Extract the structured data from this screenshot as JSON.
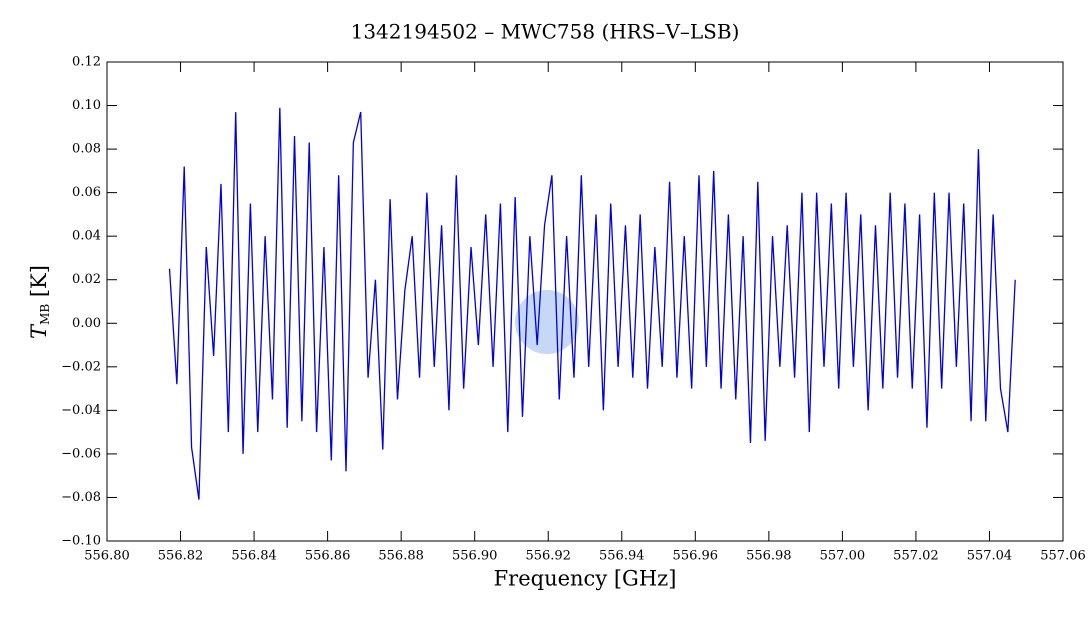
{
  "chart_data": {
    "type": "line",
    "title": "1342194502 – MWC758 (HRS–V–LSB)",
    "x_label": "Frequency [GHz]",
    "y_label": [
      "T",
      "MB",
      " [K]"
    ],
    "x": [
      556.817,
      556.819,
      556.821,
      556.823,
      556.825,
      556.827,
      556.829,
      556.831,
      556.833,
      556.835,
      556.837,
      556.839,
      556.841,
      556.843,
      556.845,
      556.847,
      556.849,
      556.851,
      556.853,
      556.855,
      556.857,
      556.859,
      556.861,
      556.863,
      556.865,
      556.867,
      556.869,
      556.871,
      556.873,
      556.875,
      556.877,
      556.879,
      556.881,
      556.883,
      556.885,
      556.887,
      556.889,
      556.891,
      556.893,
      556.895,
      556.897,
      556.899,
      556.901,
      556.903,
      556.905,
      556.907,
      556.909,
      556.911,
      556.913,
      556.915,
      556.917,
      556.919,
      556.921,
      556.923,
      556.925,
      556.927,
      556.929,
      556.931,
      556.933,
      556.935,
      556.937,
      556.939,
      556.941,
      556.943,
      556.945,
      556.947,
      556.949,
      556.951,
      556.953,
      556.955,
      556.957,
      556.959,
      556.961,
      556.963,
      556.965,
      556.967,
      556.969,
      556.971,
      556.973,
      556.975,
      556.977,
      556.979,
      556.981,
      556.983,
      556.985,
      556.987,
      556.989,
      556.991,
      556.993,
      556.995,
      556.997,
      556.999,
      557.001,
      557.003,
      557.005,
      557.007,
      557.009,
      557.011,
      557.013,
      557.015,
      557.017,
      557.019,
      557.021,
      557.023,
      557.025,
      557.027,
      557.029,
      557.031,
      557.033,
      557.035,
      557.037,
      557.039,
      557.041,
      557.043,
      557.045,
      557.047
    ],
    "series": [
      {
        "color": "#0000e0",
        "values": [
          0.025,
          -0.028,
          0.072,
          -0.057,
          -0.081,
          0.035,
          -0.015,
          0.064,
          -0.05,
          0.097,
          -0.06,
          0.055,
          -0.05,
          0.04,
          -0.035,
          0.099,
          -0.048,
          0.086,
          -0.045,
          0.083,
          -0.05,
          0.035,
          -0.063,
          0.068,
          -0.068,
          0.083,
          0.097,
          -0.025,
          0.02,
          -0.058,
          0.057,
          -0.035,
          0.015,
          0.04,
          -0.025,
          0.06,
          -0.02,
          0.045,
          -0.04,
          0.068,
          -0.03,
          0.035,
          -0.01,
          0.05,
          -0.02,
          0.055,
          -0.05,
          0.058,
          -0.043,
          0.04,
          -0.01,
          0.045,
          0.068,
          -0.035,
          0.04,
          -0.025,
          0.068,
          -0.02,
          0.05,
          -0.04,
          0.055,
          -0.02,
          0.045,
          -0.025,
          0.05,
          -0.03,
          0.035,
          -0.02,
          0.065,
          -0.025,
          0.04,
          -0.03,
          0.068,
          -0.02,
          0.07,
          -0.03,
          0.05,
          -0.035,
          0.04,
          -0.055,
          0.065,
          -0.054,
          0.04,
          -0.02,
          0.045,
          -0.025,
          0.06,
          -0.05,
          0.06,
          -0.02,
          0.055,
          -0.03,
          0.06,
          -0.02,
          0.05,
          -0.04,
          0.045,
          -0.03,
          0.06,
          -0.025,
          0.055,
          -0.03,
          0.05,
          -0.048,
          0.06,
          -0.03,
          0.06,
          -0.02,
          0.055,
          -0.045,
          0.08,
          -0.045,
          0.05,
          -0.03,
          -0.05,
          0.02
        ]
      }
    ],
    "xlim": [
      556.8,
      557.06
    ],
    "xticks": [
      {
        "value": 556.8,
        "label": "556.80"
      },
      556.82,
      556.84,
      556.86,
      556.88,
      {
        "value": 556.9,
        "label": "556.90"
      },
      556.92,
      556.94,
      556.96,
      556.98,
      {
        "value": 557.0,
        "label": "557.00"
      },
      557.02,
      557.04,
      557.06
    ],
    "ylim": [
      -0.1,
      0.12
    ],
    "yticks": [
      {
        "value": -0.1,
        "label": "−0.10"
      },
      {
        "value": -0.08,
        "label": "−0.08"
      },
      {
        "value": -0.06,
        "label": "−0.06"
      },
      {
        "value": -0.04,
        "label": "−0.04"
      },
      {
        "value": -0.02,
        "label": "−0.02"
      },
      {
        "value": 0.0,
        "label": "0.00"
      },
      0.02,
      0.04,
      0.06,
      0.08,
      {
        "value": 0.1,
        "label": "0.10"
      },
      0.12
    ]
  }
}
